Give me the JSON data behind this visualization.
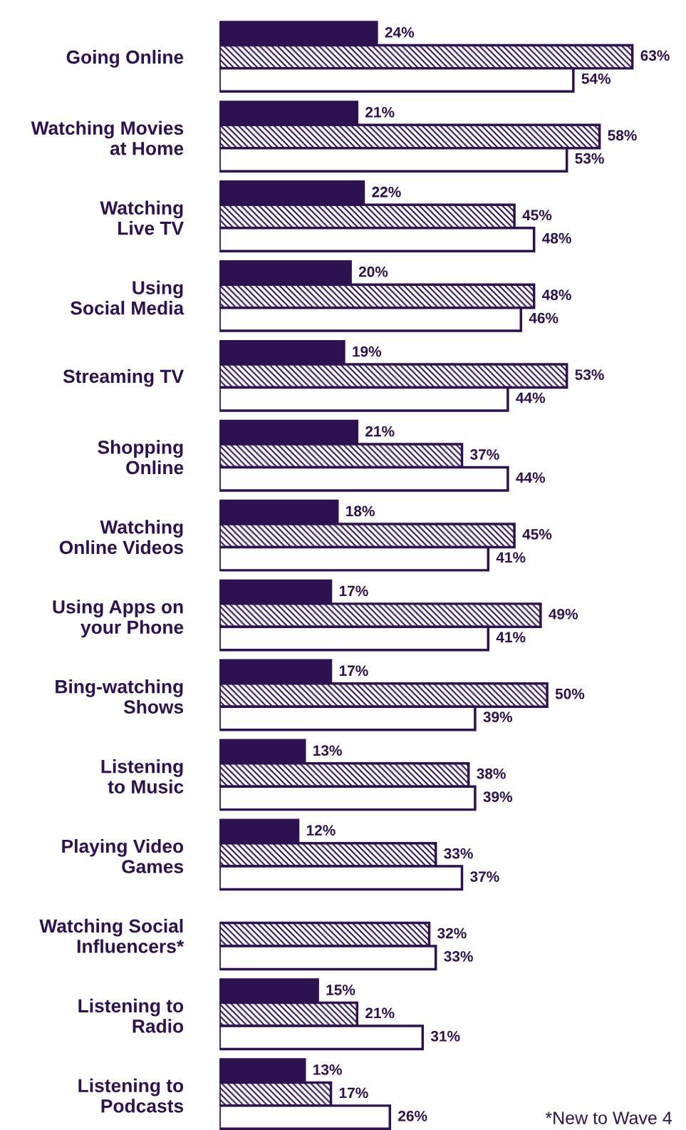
{
  "chart_data": {
    "type": "bar",
    "orientation": "horizontal",
    "grid": false,
    "legend": false,
    "categories": [
      "Going Online",
      "Watching Movies\nat Home",
      "Watching\nLive TV",
      "Using\nSocial Media",
      "Streaming TV",
      "Shopping\nOnline",
      "Watching\nOnline Videos",
      "Using Apps on\nyour Phone",
      "Bing-watching\nShows",
      "Listening\nto Music",
      "Playing Video\nGames",
      "Watching Social\nInfluencers*",
      "Listening to\nRadio",
      "Listening to\nPodcasts"
    ],
    "series": [
      {
        "color": "#2d1150",
        "values": [
          24,
          21,
          22,
          20,
          19,
          21,
          18,
          17,
          17,
          13,
          12,
          null,
          15,
          13
        ],
        "value_labels": [
          "24%",
          "21%",
          "22%",
          "20%",
          "19%",
          "21%",
          "18%",
          "17%",
          "17%",
          "13%",
          "12%",
          null,
          "15%",
          "13%"
        ]
      },
      {
        "color": "#2d1150",
        "values": [
          63,
          58,
          45,
          48,
          53,
          37,
          45,
          49,
          50,
          38,
          33,
          32,
          21,
          17
        ],
        "value_labels": [
          "63%",
          "58%",
          "45%",
          "48%",
          "53%",
          "37%",
          "45%",
          "49%",
          "50%",
          "38%",
          "33%",
          "32%",
          "21%",
          "17%"
        ]
      },
      {
        "color": "#ffffff",
        "values": [
          54,
          53,
          48,
          46,
          44,
          44,
          41,
          41,
          39,
          39,
          37,
          33,
          31,
          26
        ],
        "value_labels": [
          "54%",
          "53%",
          "48%",
          "46%",
          "44%",
          "44%",
          "41%",
          "41%",
          "39%",
          "39%",
          "37%",
          "33%",
          "31%",
          "26%"
        ]
      }
    ],
    "annotations": [
      "*New to Wave 4"
    ]
  }
}
